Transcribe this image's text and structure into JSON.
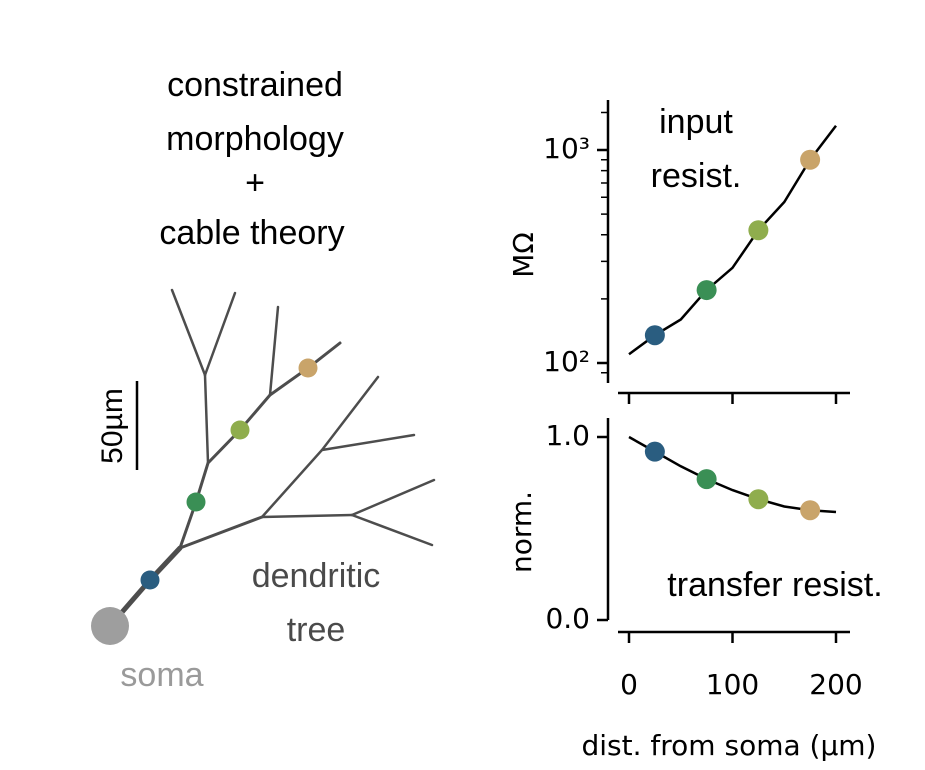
{
  "title_lines": [
    "constrained",
    "morphology",
    "+",
    "cable theory"
  ],
  "tree": {
    "label_lines": [
      "dendritic",
      "tree"
    ],
    "soma_label": "soma",
    "scale_bar_label": "50µm"
  },
  "colors": {
    "site_1": "#2a5d80",
    "site_2": "#3a8f55",
    "site_3": "#8fad4d",
    "site_4": "#c9a46a",
    "soma": "#9e9e9e",
    "tree": "#4d4d4d",
    "curve": "#000000"
  },
  "chart_data": [
    {
      "type": "line",
      "panel_text_lines": [
        "input",
        "resist."
      ],
      "ylabel": "MΩ",
      "yscale": "log",
      "ylim": [
        85,
        1800
      ],
      "xlim": [
        -10,
        210
      ],
      "yticks": [
        {
          "value": 100,
          "label": "10²"
        },
        {
          "value": 1000,
          "label": "10³"
        }
      ],
      "curve": {
        "x": [
          0,
          25,
          50,
          75,
          100,
          125,
          150,
          175,
          200
        ],
        "y": [
          110,
          135,
          160,
          220,
          280,
          420,
          570,
          900,
          1300
        ]
      },
      "points": [
        {
          "x": 25,
          "y": 135,
          "color_key": "site_1"
        },
        {
          "x": 75,
          "y": 220,
          "color_key": "site_2"
        },
        {
          "x": 125,
          "y": 420,
          "color_key": "site_3"
        },
        {
          "x": 175,
          "y": 900,
          "color_key": "site_4"
        }
      ]
    },
    {
      "type": "line",
      "panel_text": "transfer resist.",
      "ylabel": "norm.",
      "yscale": "linear",
      "ylim": [
        0.0,
        1.15
      ],
      "xlim": [
        -10,
        210
      ],
      "yticks": [
        {
          "value": 0.0,
          "label": "0.0"
        },
        {
          "value": 1.0,
          "label": "1.0"
        }
      ],
      "xticks": [
        {
          "value": 0,
          "label": "0"
        },
        {
          "value": 100,
          "label": "100"
        },
        {
          "value": 200,
          "label": "200"
        }
      ],
      "xlabel": "dist. from soma (µm)",
      "curve": {
        "x": [
          0,
          25,
          50,
          75,
          100,
          125,
          150,
          175,
          200
        ],
        "y": [
          1.0,
          0.92,
          0.84,
          0.77,
          0.71,
          0.66,
          0.62,
          0.6,
          0.59
        ]
      },
      "points": [
        {
          "x": 25,
          "y": 0.92,
          "color_key": "site_1"
        },
        {
          "x": 75,
          "y": 0.77,
          "color_key": "site_2"
        },
        {
          "x": 125,
          "y": 0.66,
          "color_key": "site_3"
        },
        {
          "x": 175,
          "y": 0.6,
          "color_key": "site_4"
        }
      ]
    }
  ]
}
